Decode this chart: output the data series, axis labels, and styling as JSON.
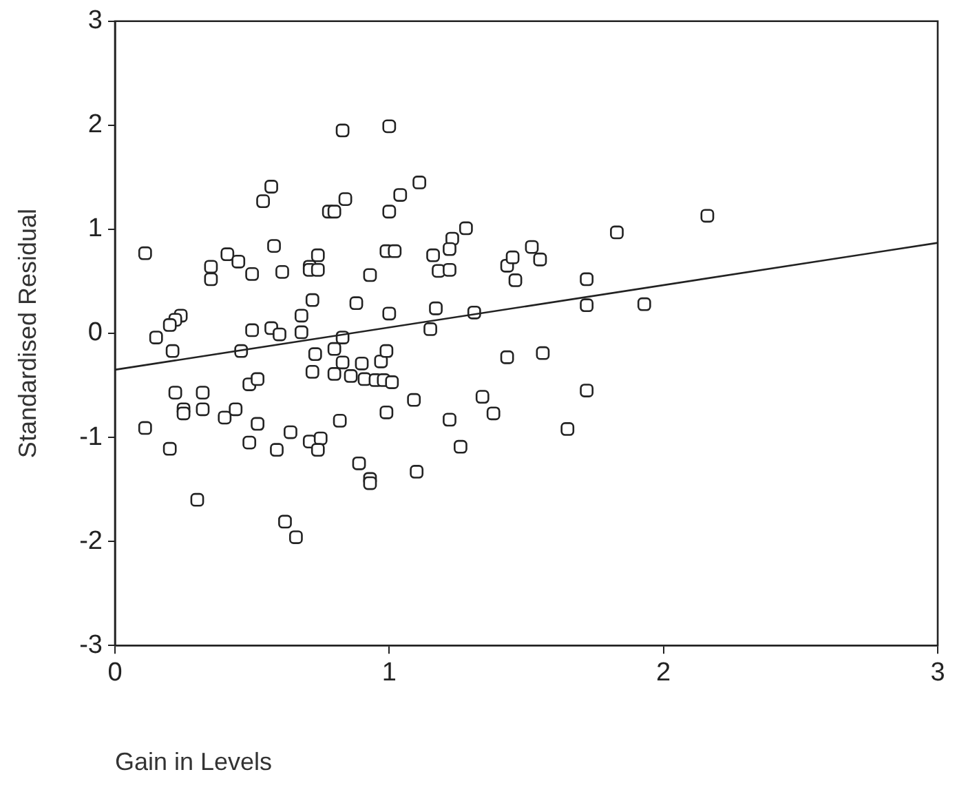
{
  "chart_data": {
    "type": "scatter",
    "xlabel": "Gain in Levels",
    "ylabel": "Standardised Residual",
    "xlim": [
      0,
      3
    ],
    "xticks": [
      0,
      1,
      2,
      3
    ],
    "ylim": [
      -3,
      3
    ],
    "yticks": [
      -3,
      -2,
      -1,
      0,
      1,
      2,
      3
    ],
    "grid": false,
    "legend": false,
    "marker": "square",
    "series": [
      {
        "color": "#222222",
        "x": [
          0.83,
          1.0,
          0.57,
          0.54,
          0.84,
          0.78,
          0.8,
          1.04,
          1.0,
          0.11,
          0.35,
          0.35,
          0.41,
          0.45,
          0.5,
          0.58,
          0.61,
          0.71,
          0.71,
          0.74,
          0.74,
          0.93,
          0.99,
          1.02,
          0.72,
          0.88,
          1.0,
          0.24,
          0.22,
          0.2,
          0.15,
          0.21,
          0.5,
          0.57,
          0.6,
          0.68,
          0.68,
          0.83,
          0.46,
          0.73,
          0.8,
          0.83,
          0.72,
          0.8,
          0.86,
          0.9,
          0.91,
          0.95,
          0.98,
          1.01,
          0.97,
          0.99,
          0.49,
          0.52,
          0.22,
          0.32,
          0.25,
          0.25,
          0.32,
          0.4,
          0.44,
          0.52,
          0.11,
          0.2,
          0.49,
          0.59,
          0.64,
          0.71,
          0.75,
          0.74,
          0.82,
          0.99,
          0.89,
          0.93,
          0.93,
          0.3,
          0.62,
          0.66,
          1.11,
          1.28,
          1.23,
          1.22,
          1.16,
          1.18,
          1.22,
          1.43,
          1.45,
          1.52,
          1.55,
          1.46,
          1.83,
          2.16,
          1.72,
          1.72,
          1.93,
          1.17,
          1.31,
          1.15,
          1.43,
          1.56,
          1.72,
          1.09,
          1.34,
          1.38,
          1.22,
          1.65,
          1.26,
          1.1
        ],
        "values": [
          1.95,
          1.99,
          1.41,
          1.27,
          1.29,
          1.17,
          1.17,
          1.33,
          1.17,
          0.77,
          0.64,
          0.52,
          0.76,
          0.69,
          0.57,
          0.84,
          0.59,
          0.64,
          0.61,
          0.75,
          0.61,
          0.56,
          0.79,
          0.79,
          0.32,
          0.29,
          0.19,
          0.17,
          0.13,
          0.08,
          -0.04,
          -0.17,
          0.03,
          0.05,
          -0.01,
          0.17,
          0.01,
          -0.04,
          -0.17,
          -0.2,
          -0.15,
          -0.28,
          -0.37,
          -0.39,
          -0.41,
          -0.29,
          -0.44,
          -0.45,
          -0.45,
          -0.47,
          -0.27,
          -0.17,
          -0.49,
          -0.44,
          -0.57,
          -0.57,
          -0.73,
          -0.77,
          -0.73,
          -0.81,
          -0.73,
          -0.87,
          -0.91,
          -1.11,
          -1.05,
          -1.12,
          -0.95,
          -1.04,
          -1.01,
          -1.12,
          -0.84,
          -0.76,
          -1.25,
          -1.4,
          -1.44,
          -1.6,
          -1.81,
          -1.96,
          1.45,
          1.01,
          0.91,
          0.81,
          0.75,
          0.6,
          0.61,
          0.65,
          0.73,
          0.83,
          0.71,
          0.51,
          0.97,
          1.13,
          0.52,
          0.27,
          0.28,
          0.24,
          0.2,
          0.04,
          -0.23,
          -0.19,
          -0.55,
          -0.64,
          -0.61,
          -0.77,
          -0.83,
          -0.92,
          -1.09,
          -1.33
        ]
      },
      {
        "type": "line",
        "color": "#222222",
        "marker": "none",
        "x": [
          0,
          3
        ],
        "values": [
          -0.35,
          0.87
        ]
      }
    ]
  }
}
